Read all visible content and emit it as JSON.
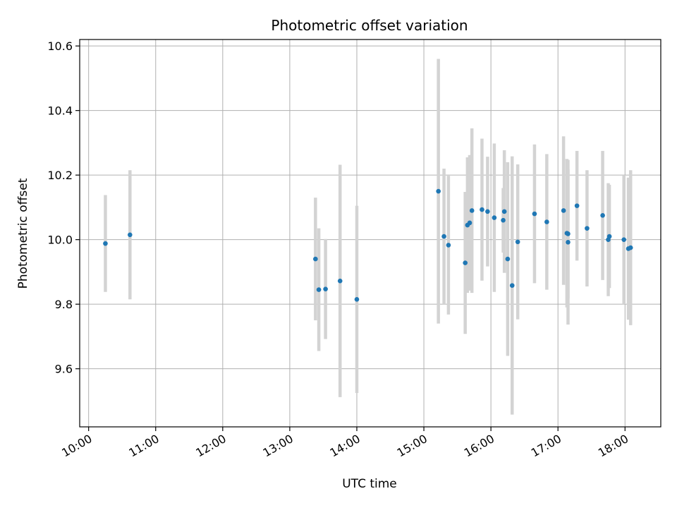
{
  "chart_data": {
    "type": "scatter",
    "title": "Photometric offset variation",
    "xlabel": "UTC time",
    "ylabel": "Photometric offset",
    "x_unit": "hour",
    "xlim": [
      "09:52",
      "18:32"
    ],
    "ylim": [
      9.42,
      10.62
    ],
    "x_ticks": [
      "10:00",
      "11:00",
      "12:00",
      "13:00",
      "14:00",
      "15:00",
      "16:00",
      "17:00",
      "18:00"
    ],
    "y_ticks": [
      "9.6",
      "9.8",
      "10.0",
      "10.2",
      "10.4",
      "10.6"
    ],
    "grid": true,
    "point_color": "#1f77b4",
    "errorbar_color": "#d3d3d3",
    "points": [
      {
        "x": "10:15",
        "y": 9.988,
        "err": 0.15
      },
      {
        "x": "10:37",
        "y": 10.015,
        "err": 0.2
      },
      {
        "x": "13:23",
        "y": 9.94,
        "err": 0.19
      },
      {
        "x": "13:26",
        "y": 9.845,
        "err": 0.19
      },
      {
        "x": "13:32",
        "y": 9.847,
        "err": 0.155
      },
      {
        "x": "13:45",
        "y": 9.872,
        "err": 0.36
      },
      {
        "x": "14:00",
        "y": 9.815,
        "err": 0.29
      },
      {
        "x": "15:13",
        "y": 10.15,
        "err": 0.41
      },
      {
        "x": "15:18",
        "y": 10.01,
        "err": 0.21
      },
      {
        "x": "15:22",
        "y": 9.983,
        "err": 0.215
      },
      {
        "x": "15:37",
        "y": 9.928,
        "err": 0.22
      },
      {
        "x": "15:39",
        "y": 10.045,
        "err": 0.21
      },
      {
        "x": "15:41",
        "y": 10.052,
        "err": 0.21
      },
      {
        "x": "15:43",
        "y": 10.09,
        "err": 0.255
      },
      {
        "x": "15:52",
        "y": 10.093,
        "err": 0.22
      },
      {
        "x": "15:57",
        "y": 10.087,
        "err": 0.17
      },
      {
        "x": "16:03",
        "y": 10.068,
        "err": 0.23
      },
      {
        "x": "16:11",
        "y": 10.06,
        "err": 0.1
      },
      {
        "x": "16:12",
        "y": 10.087,
        "err": 0.19
      },
      {
        "x": "16:15",
        "y": 9.94,
        "err": 0.3
      },
      {
        "x": "16:19",
        "y": 9.858,
        "err": 0.4
      },
      {
        "x": "16:24",
        "y": 9.993,
        "err": 0.24
      },
      {
        "x": "16:39",
        "y": 10.08,
        "err": 0.215
      },
      {
        "x": "16:50",
        "y": 10.055,
        "err": 0.21
      },
      {
        "x": "17:05",
        "y": 10.09,
        "err": 0.23
      },
      {
        "x": "17:08",
        "y": 10.02,
        "err": 0.23
      },
      {
        "x": "17:09",
        "y": 9.992,
        "err": 0.255
      },
      {
        "x": "17:09",
        "y": 10.018,
        "err": 0.2
      },
      {
        "x": "17:17",
        "y": 10.105,
        "err": 0.17
      },
      {
        "x": "17:26",
        "y": 10.035,
        "err": 0.18
      },
      {
        "x": "17:40",
        "y": 10.075,
        "err": 0.2
      },
      {
        "x": "17:45",
        "y": 10.0,
        "err": 0.175
      },
      {
        "x": "17:46",
        "y": 10.01,
        "err": 0.16
      },
      {
        "x": "17:59",
        "y": 10.0,
        "err": 0.2
      },
      {
        "x": "18:03",
        "y": 9.972,
        "err": 0.22
      },
      {
        "x": "18:05",
        "y": 9.975,
        "err": 0.24
      }
    ]
  }
}
